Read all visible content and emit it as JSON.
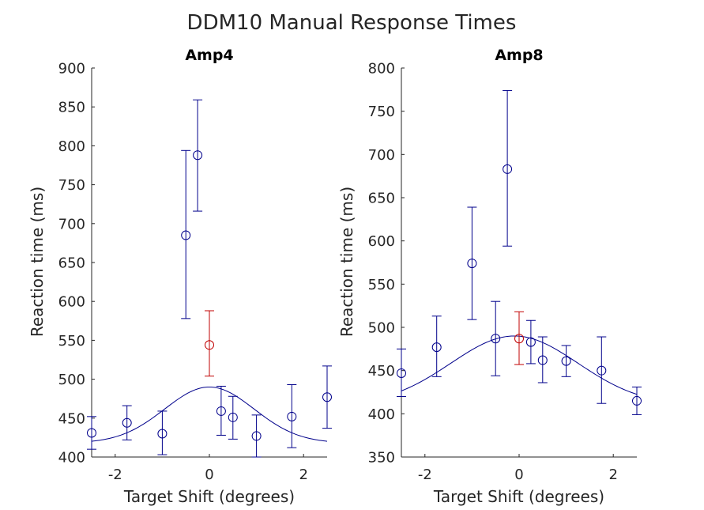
{
  "figure": {
    "title": "DDM10 Manual Response Times"
  },
  "chart_data": [
    {
      "type": "scatter",
      "title": "Amp4",
      "xlabel": "Target Shift (degrees)",
      "ylabel": "Reaction time (ms)",
      "xlim": [
        -2.5,
        2.5
      ],
      "ylim": [
        400,
        900
      ],
      "xticks": [
        -2,
        0,
        2
      ],
      "xtick_labels": [
        "-2",
        "0",
        "2"
      ],
      "yticks": [
        400,
        450,
        500,
        550,
        600,
        650,
        700,
        750,
        800,
        850,
        900
      ],
      "ytick_labels": [
        "400",
        "450",
        "500",
        "550",
        "600",
        "650",
        "700",
        "750",
        "800",
        "850",
        "900"
      ],
      "grid": false,
      "colors": {
        "data": "#00008B",
        "highlight": "#C00000",
        "fit": "#00008B"
      },
      "points": [
        {
          "x": -2.5,
          "y": 431,
          "lo": 410,
          "hi": 452
        },
        {
          "x": -1.75,
          "y": 444,
          "lo": 422,
          "hi": 466
        },
        {
          "x": -1.0,
          "y": 430,
          "lo": 403,
          "hi": 459
        },
        {
          "x": -0.5,
          "y": 685,
          "lo": 578,
          "hi": 794
        },
        {
          "x": -0.25,
          "y": 788,
          "lo": 716,
          "hi": 859
        },
        {
          "x": 0.0,
          "y": 544,
          "lo": 504,
          "hi": 588,
          "highlight": true
        },
        {
          "x": 0.25,
          "y": 459,
          "lo": 428,
          "hi": 491
        },
        {
          "x": 0.5,
          "y": 451,
          "lo": 423,
          "hi": 478
        },
        {
          "x": 1.0,
          "y": 427,
          "lo": 400,
          "hi": 454
        },
        {
          "x": 1.75,
          "y": 452,
          "lo": 412,
          "hi": 493
        },
        {
          "x": 2.5,
          "y": 477,
          "lo": 437,
          "hi": 517
        }
      ],
      "fit": {
        "shape": "gaussian",
        "baseline": 418,
        "amplitude": 72,
        "center": 0,
        "sigma": 0.95
      }
    },
    {
      "type": "scatter",
      "title": "Amp8",
      "xlabel": "Target Shift (degrees)",
      "ylabel": "Reaction time (ms)",
      "xlim": [
        -2.5,
        2.5
      ],
      "ylim": [
        350,
        800
      ],
      "xticks": [
        -2,
        0,
        2
      ],
      "xtick_labels": [
        "-2",
        "0",
        "2"
      ],
      "yticks": [
        350,
        400,
        450,
        500,
        550,
        600,
        650,
        700,
        750,
        800
      ],
      "ytick_labels": [
        "350",
        "400",
        "450",
        "500",
        "550",
        "600",
        "650",
        "700",
        "750",
        "800"
      ],
      "grid": false,
      "colors": {
        "data": "#00008B",
        "highlight": "#C00000",
        "fit": "#00008B"
      },
      "points": [
        {
          "x": -2.5,
          "y": 447,
          "lo": 420,
          "hi": 475
        },
        {
          "x": -1.75,
          "y": 477,
          "lo": 443,
          "hi": 513
        },
        {
          "x": -1.0,
          "y": 574,
          "lo": 509,
          "hi": 639
        },
        {
          "x": -0.5,
          "y": 487,
          "lo": 444,
          "hi": 530
        },
        {
          "x": -0.25,
          "y": 683,
          "lo": 594,
          "hi": 774
        },
        {
          "x": 0.0,
          "y": 487,
          "lo": 457,
          "hi": 518,
          "highlight": true
        },
        {
          "x": 0.25,
          "y": 483,
          "lo": 458,
          "hi": 508
        },
        {
          "x": 0.5,
          "y": 462,
          "lo": 436,
          "hi": 489
        },
        {
          "x": 1.0,
          "y": 461,
          "lo": 443,
          "hi": 479
        },
        {
          "x": 1.75,
          "y": 450,
          "lo": 412,
          "hi": 489
        },
        {
          "x": 2.5,
          "y": 415,
          "lo": 399,
          "hi": 431
        }
      ],
      "fit": {
        "shape": "gaussian",
        "baseline": 410,
        "amplitude": 80,
        "center": -0.1,
        "sigma": 1.35
      }
    }
  ]
}
